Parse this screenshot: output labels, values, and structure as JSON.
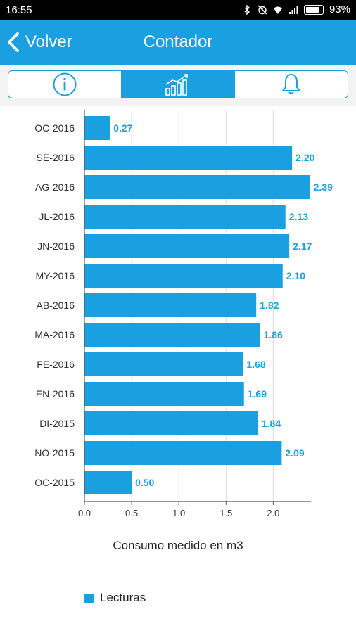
{
  "status_bar": {
    "time": "16:55",
    "battery": "93%",
    "battery_level": 0.93
  },
  "app_bar": {
    "back_label": "Volver",
    "title": "Contador"
  },
  "tabs": [
    {
      "icon": "info-icon",
      "active": false
    },
    {
      "icon": "chart-icon",
      "active": true
    },
    {
      "icon": "bell-icon",
      "active": false
    }
  ],
  "colors": {
    "accent": "#1aa0e0",
    "bar": "#1aa0e0",
    "label": "#1aa0e0"
  },
  "chart_data": {
    "type": "bar",
    "orientation": "horizontal",
    "categories": [
      "OC-2016",
      "SE-2016",
      "AG-2016",
      "JL-2016",
      "JN-2016",
      "MY-2016",
      "AB-2016",
      "MA-2016",
      "FE-2016",
      "EN-2016",
      "DI-2015",
      "NO-2015",
      "OC-2015"
    ],
    "values": [
      0.27,
      2.2,
      2.39,
      2.13,
      2.17,
      2.1,
      1.82,
      1.86,
      1.68,
      1.69,
      1.84,
      2.09,
      0.5
    ],
    "value_labels": [
      "0.27",
      "2.20",
      "2.39",
      "2.13",
      "2.17",
      "2.10",
      "1.82",
      "1.86",
      "1.68",
      "1.69",
      "1.84",
      "2.09",
      "0.50"
    ],
    "xticks": [
      "0.0",
      "0.5",
      "1.0",
      "1.5",
      "2.0"
    ],
    "xlim": [
      0,
      2.4
    ],
    "grid": true,
    "xlabel": "Consumo medido en m3",
    "series_name": "Lecturas",
    "legend": "bottom-left"
  }
}
